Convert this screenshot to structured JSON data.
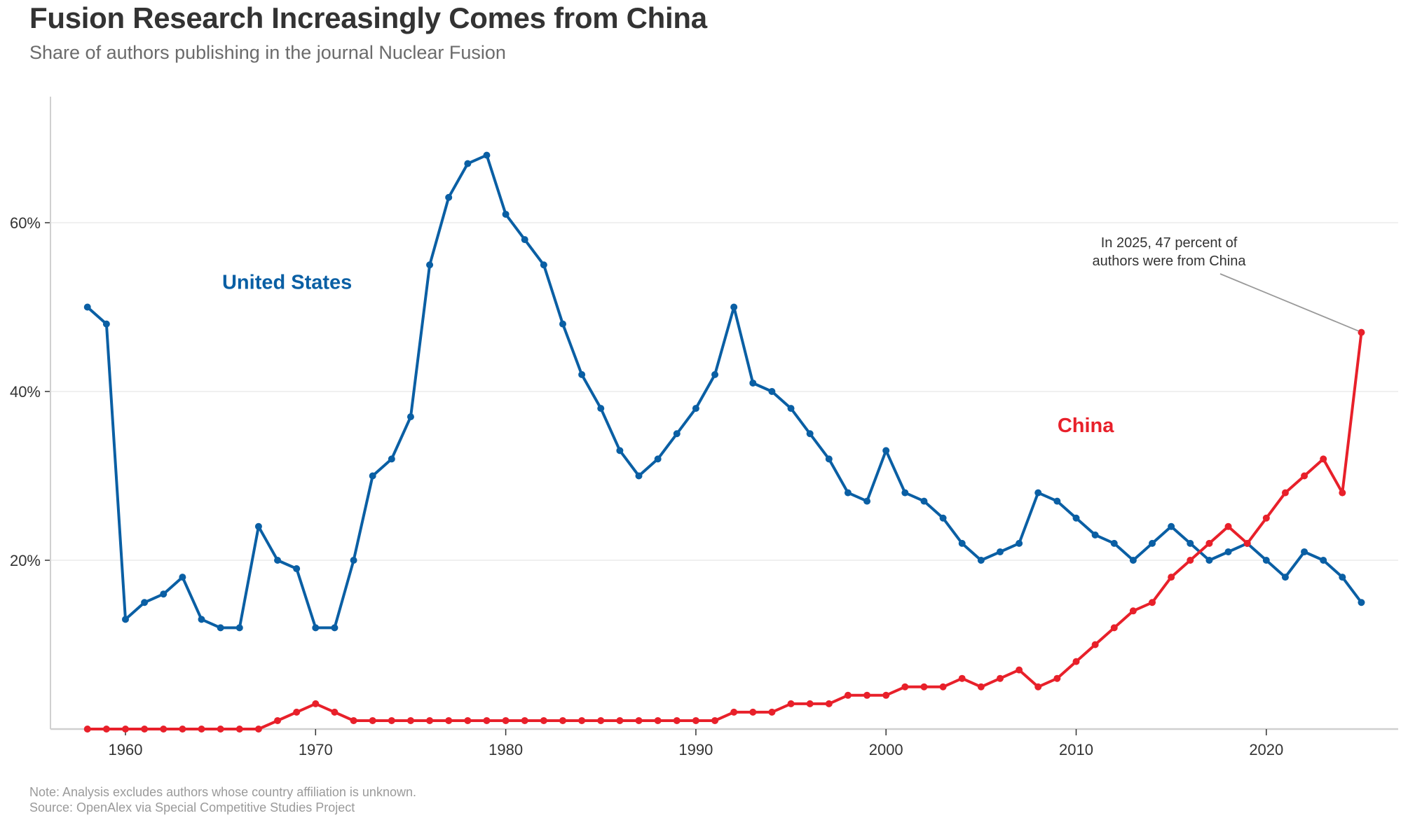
{
  "chart_data": {
    "type": "line",
    "title": "Fusion Research Increasingly Comes from China",
    "subtitle": "Share of authors publishing in the journal Nuclear Fusion",
    "xlabel": "",
    "ylabel": "",
    "xlim": [
      1956,
      2027
    ],
    "ylim": [
      0,
      75
    ],
    "x_ticks": [
      1960,
      1970,
      1980,
      1990,
      2000,
      2010,
      2020
    ],
    "y_ticks": [
      20,
      40,
      60
    ],
    "y_tick_labels": [
      "20%",
      "40%",
      "60%"
    ],
    "grid": "horizontal",
    "x": [
      1958,
      1959,
      1960,
      1961,
      1962,
      1963,
      1964,
      1965,
      1966,
      1967,
      1968,
      1969,
      1970,
      1971,
      1972,
      1973,
      1974,
      1975,
      1976,
      1977,
      1978,
      1979,
      1980,
      1981,
      1982,
      1983,
      1984,
      1985,
      1986,
      1987,
      1988,
      1989,
      1990,
      1991,
      1992,
      1993,
      1994,
      1995,
      1996,
      1997,
      1998,
      1999,
      2000,
      2001,
      2002,
      2003,
      2004,
      2005,
      2006,
      2007,
      2008,
      2009,
      2010,
      2011,
      2012,
      2013,
      2014,
      2015,
      2016,
      2017,
      2018,
      2019,
      2020,
      2021,
      2022,
      2023,
      2024,
      2025
    ],
    "series": [
      {
        "name": "United States",
        "color": "#0a5fa4",
        "values": [
          50,
          48,
          13,
          15,
          16,
          18,
          13,
          12,
          12,
          24,
          20,
          19,
          12,
          12,
          20,
          30,
          32,
          37,
          55,
          63,
          67,
          68,
          61,
          58,
          55,
          48,
          42,
          38,
          33,
          30,
          32,
          35,
          38,
          42,
          50,
          41,
          40,
          38,
          35,
          32,
          28,
          27,
          33,
          28,
          27,
          25,
          22,
          20,
          21,
          22,
          28,
          27,
          25,
          23,
          22,
          20,
          22,
          24,
          22,
          20,
          21,
          22,
          20,
          18,
          21,
          20,
          18,
          15
        ]
      },
      {
        "name": "China",
        "color": "#e8202a",
        "values": [
          0,
          0,
          0,
          0,
          0,
          0,
          0,
          0,
          0,
          0,
          1,
          2,
          3,
          2,
          1,
          1,
          1,
          1,
          1,
          1,
          1,
          1,
          1,
          1,
          1,
          1,
          1,
          1,
          1,
          1,
          1,
          1,
          1,
          1,
          2,
          2,
          2,
          3,
          3,
          3,
          4,
          4,
          4,
          5,
          5,
          5,
          6,
          5,
          6,
          7,
          5,
          6,
          8,
          10,
          12,
          14,
          15,
          18,
          20,
          22,
          24,
          22,
          25,
          28,
          30,
          32,
          28,
          47
        ]
      }
    ],
    "annotations": [
      {
        "text_lines": [
          "In 2025, 47 percent of",
          "authors were from China"
        ],
        "target": {
          "series": "China",
          "x": 2025,
          "y": 47
        }
      }
    ],
    "series_labels": [
      {
        "text": "United States",
        "x": 1965,
        "y": 53
      },
      {
        "text": "China",
        "x": 2007,
        "y": 36
      }
    ],
    "note": "Note: Analysis excludes authors whose country affiliation is unknown.",
    "source": "Source: OpenAlex via Special Competitive Studies Project"
  }
}
